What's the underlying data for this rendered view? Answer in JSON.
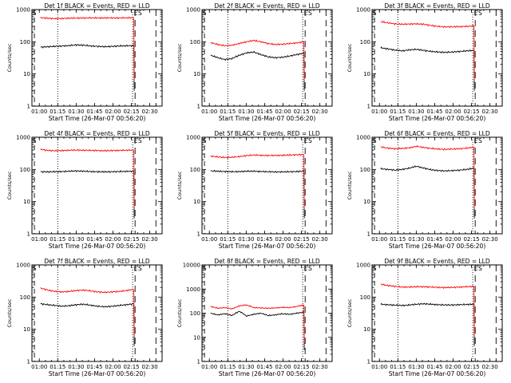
{
  "chart_data": [
    {
      "type": "line",
      "title": "Det 1f BLACK = Events, RED = LLD",
      "xlabel": "Start Time (26-Mar-07 00:56:20)",
      "ylabel": "Counts/sec",
      "y_scale": "log",
      "ylim": [
        1,
        1000
      ],
      "x_ticks": [
        "01:00",
        "01:15",
        "01:30",
        "01:45",
        "02:00",
        "02:15",
        "02:30"
      ],
      "y_ticks": [
        "1",
        "10",
        "100",
        "1000"
      ],
      "markers": [
        "E",
        "S"
      ],
      "series": [
        {
          "name": "Events",
          "color": "#000000",
          "values": [
            68,
            70,
            72,
            74,
            76,
            80,
            78,
            74,
            72,
            70,
            72,
            74,
            75,
            76
          ]
        },
        {
          "name": "LLD",
          "color": "#ff0000",
          "values": [
            560,
            540,
            520,
            530,
            540,
            545,
            548,
            550,
            552,
            550,
            548,
            550,
            552,
            555
          ]
        }
      ]
    },
    {
      "type": "line",
      "title": "Det 2f BLACK = Events, RED = LLD",
      "xlabel": "Start Time (26-Mar-07 00:56:20)",
      "ylabel": "Counts/sec",
      "y_scale": "log",
      "ylim": [
        1,
        1000
      ],
      "x_ticks": [
        "01:00",
        "01:15",
        "01:30",
        "01:45",
        "02:00",
        "02:15",
        "02:30"
      ],
      "y_ticks": [
        "1",
        "10",
        "100",
        "1000"
      ],
      "markers": [
        "E",
        "S"
      ],
      "series": [
        {
          "name": "Events",
          "color": "#000000",
          "values": [
            38,
            32,
            28,
            30,
            38,
            45,
            48,
            40,
            34,
            32,
            33,
            36,
            40,
            44
          ]
        },
        {
          "name": "LLD",
          "color": "#ff0000",
          "values": [
            95,
            82,
            75,
            78,
            88,
            100,
            110,
            100,
            88,
            82,
            84,
            88,
            92,
            100
          ]
        }
      ]
    },
    {
      "type": "line",
      "title": "Det 3f BLACK = Events, RED = LLD",
      "xlabel": "Start Time (26-Mar-07 00:56:20)",
      "ylabel": "Counts/sec",
      "y_scale": "log",
      "ylim": [
        1,
        1000
      ],
      "x_ticks": [
        "01:00",
        "01:15",
        "01:30",
        "01:45",
        "02:00",
        "02:15",
        "02:30"
      ],
      "y_ticks": [
        "1",
        "10",
        "100",
        "1000"
      ],
      "markers": [
        "E",
        "S"
      ],
      "series": [
        {
          "name": "Events",
          "color": "#000000",
          "values": [
            65,
            60,
            55,
            52,
            56,
            58,
            54,
            50,
            48,
            47,
            48,
            50,
            52,
            54
          ]
        },
        {
          "name": "LLD",
          "color": "#ff0000",
          "values": [
            420,
            390,
            360,
            350,
            355,
            360,
            350,
            320,
            300,
            290,
            290,
            295,
            300,
            310
          ]
        }
      ]
    },
    {
      "type": "line",
      "title": "Det 4f BLACK = Events, RED = LLD",
      "xlabel": "Start Time (26-Mar-07 00:56:20)",
      "ylabel": "Counts/sec",
      "y_scale": "log",
      "ylim": [
        1,
        1000
      ],
      "x_ticks": [
        "01:00",
        "01:15",
        "01:30",
        "01:45",
        "02:00",
        "02:15",
        "02:30"
      ],
      "y_ticks": [
        "1",
        "10",
        "100",
        "1000"
      ],
      "markers": [
        "E",
        "S"
      ],
      "series": [
        {
          "name": "Events",
          "color": "#000000",
          "values": [
            85,
            84,
            85,
            86,
            88,
            90,
            88,
            86,
            85,
            84,
            85,
            86,
            87,
            88
          ]
        },
        {
          "name": "LLD",
          "color": "#ff0000",
          "values": [
            420,
            390,
            380,
            385,
            395,
            400,
            395,
            390,
            385,
            380,
            385,
            390,
            395,
            400
          ]
        }
      ]
    },
    {
      "type": "line",
      "title": "Det 5f BLACK = Events, RED = LLD",
      "xlabel": "Start Time (26-Mar-07 00:56:20)",
      "ylabel": "Counts/sec",
      "y_scale": "log",
      "ylim": [
        1,
        1000
      ],
      "x_ticks": [
        "01:00",
        "01:15",
        "01:30",
        "01:45",
        "02:00",
        "02:15",
        "02:30"
      ],
      "y_ticks": [
        "1",
        "10",
        "100",
        "1000"
      ],
      "markers": [
        "E",
        "S"
      ],
      "series": [
        {
          "name": "Events",
          "color": "#000000",
          "values": [
            90,
            88,
            86,
            85,
            86,
            88,
            88,
            86,
            85,
            84,
            84,
            85,
            86,
            88
          ]
        },
        {
          "name": "LLD",
          "color": "#ff0000",
          "values": [
            260,
            245,
            235,
            240,
            250,
            270,
            280,
            275,
            270,
            272,
            275,
            280,
            285,
            290
          ]
        }
      ]
    },
    {
      "type": "line",
      "title": "Det 6f BLACK = Events, RED = LLD",
      "xlabel": "Start Time (26-Mar-07 00:56:20)",
      "ylabel": "Counts/sec",
      "y_scale": "log",
      "ylim": [
        1,
        1000
      ],
      "x_ticks": [
        "01:00",
        "01:15",
        "01:30",
        "01:45",
        "02:00",
        "02:15",
        "02:30"
      ],
      "y_ticks": [
        "1",
        "10",
        "100",
        "1000"
      ],
      "markers": [
        "E",
        "S"
      ],
      "series": [
        {
          "name": "Events",
          "color": "#000000",
          "values": [
            105,
            100,
            95,
            100,
            110,
            125,
            110,
            98,
            92,
            90,
            92,
            95,
            100,
            110
          ]
        },
        {
          "name": "LLD",
          "color": "#ff0000",
          "values": [
            500,
            460,
            440,
            450,
            470,
            520,
            480,
            450,
            430,
            420,
            430,
            440,
            460,
            490
          ]
        }
      ]
    },
    {
      "type": "line",
      "title": "Det 7f BLACK = Events, RED = LLD",
      "xlabel": "Start Time (26-Mar-07 00:56:20)",
      "ylabel": "Counts/sec",
      "y_scale": "log",
      "ylim": [
        1,
        1000
      ],
      "x_ticks": [
        "01:00",
        "01:15",
        "01:30",
        "01:45",
        "02:00",
        "02:15",
        "02:30"
      ],
      "y_ticks": [
        "1",
        "10",
        "100",
        "1000"
      ],
      "markers": [
        "E",
        "S"
      ],
      "series": [
        {
          "name": "Events",
          "color": "#000000",
          "values": [
            62,
            58,
            55,
            52,
            54,
            58,
            60,
            56,
            52,
            50,
            52,
            55,
            58,
            62
          ]
        },
        {
          "name": "LLD",
          "color": "#ff0000",
          "values": [
            190,
            165,
            150,
            145,
            150,
            160,
            165,
            155,
            145,
            140,
            145,
            150,
            160,
            175
          ]
        }
      ]
    },
    {
      "type": "line",
      "title": "Det 8f BLACK = Events, RED = LLD",
      "xlabel": "Start Time (26-Mar-07 00:56:20)",
      "ylabel": "Counts/sec",
      "y_scale": "log",
      "ylim": [
        1,
        10000
      ],
      "x_ticks": [
        "01:00",
        "01:15",
        "01:30",
        "01:45",
        "02:00",
        "02:15",
        "02:30"
      ],
      "y_ticks": [
        "1",
        "10",
        "100",
        "1000",
        "10000"
      ],
      "markers": [
        "E",
        "S"
      ],
      "series": [
        {
          "name": "Events",
          "color": "#000000",
          "values": [
            100,
            85,
            95,
            80,
            120,
            75,
            90,
            100,
            80,
            85,
            95,
            90,
            100,
            110
          ]
        },
        {
          "name": "LLD",
          "color": "#ff0000",
          "values": [
            190,
            160,
            170,
            150,
            200,
            220,
            170,
            165,
            160,
            165,
            175,
            170,
            190,
            220
          ]
        }
      ]
    },
    {
      "type": "line",
      "title": "Det 9f BLACK = Events, RED = LLD",
      "xlabel": "Start Time (26-Mar-07 00:56:20)",
      "ylabel": "Counts/sec",
      "y_scale": "log",
      "ylim": [
        1,
        1000
      ],
      "x_ticks": [
        "01:00",
        "01:15",
        "01:30",
        "01:45",
        "02:00",
        "02:15",
        "02:30"
      ],
      "y_ticks": [
        "1",
        "10",
        "100",
        "1000"
      ],
      "markers": [
        "E",
        "S"
      ],
      "series": [
        {
          "name": "Events",
          "color": "#000000",
          "values": [
            60,
            58,
            56,
            55,
            57,
            60,
            62,
            60,
            58,
            57,
            57,
            58,
            59,
            60
          ]
        },
        {
          "name": "LLD",
          "color": "#ff0000",
          "values": [
            250,
            230,
            215,
            205,
            205,
            210,
            210,
            205,
            200,
            198,
            200,
            205,
            210,
            215
          ]
        }
      ]
    }
  ]
}
